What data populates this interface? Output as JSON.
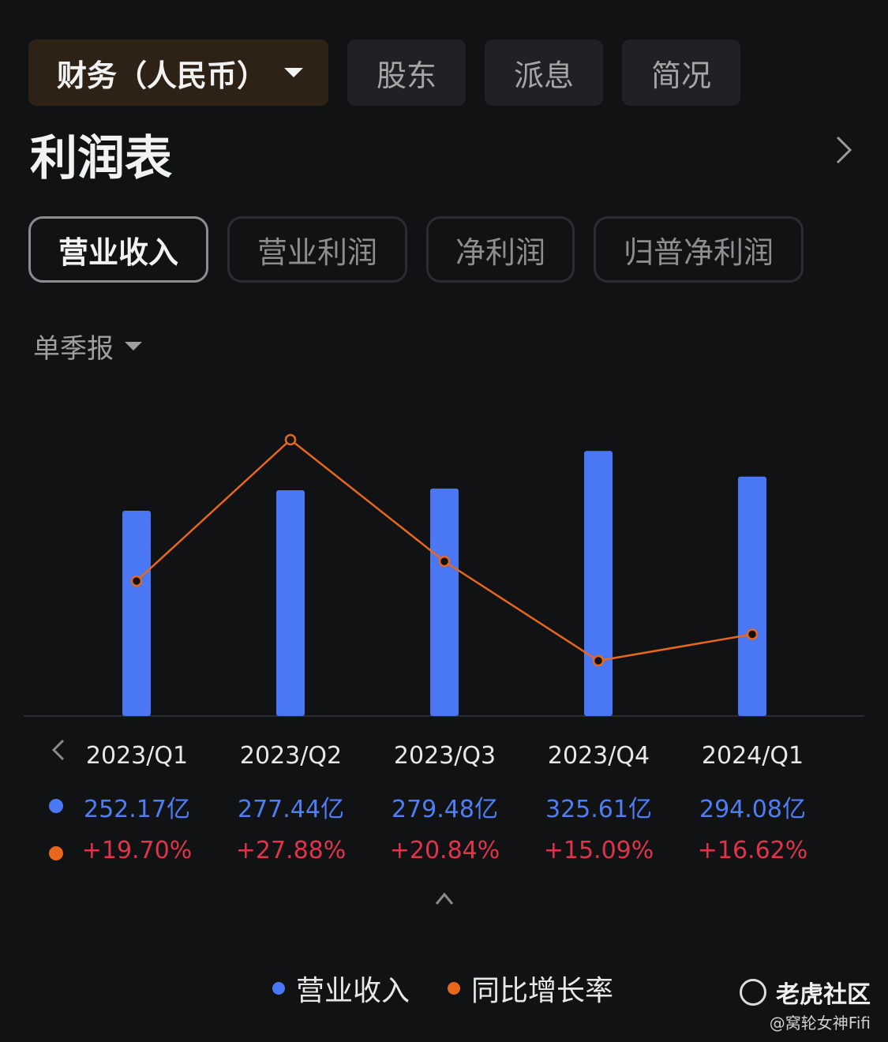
{
  "top_tabs": [
    {
      "label": "财务（人民币）",
      "active": true
    },
    {
      "label": "股东"
    },
    {
      "label": "派息"
    },
    {
      "label": "简况"
    }
  ],
  "page_title": "利润表",
  "metric_tabs": [
    {
      "label": "营业收入",
      "active": true
    },
    {
      "label": "营业利润"
    },
    {
      "label": "净利润"
    },
    {
      "label": "归普净利润"
    }
  ],
  "period_selector": "单季报",
  "colors": {
    "revenue": "#4a77f3",
    "growth": "#e7671d",
    "growth_text": "#e0344a"
  },
  "chart_data": {
    "type": "bar",
    "categories": [
      "2023/Q1",
      "2023/Q2",
      "2023/Q3",
      "2023/Q4",
      "2024/Q1"
    ],
    "series": [
      {
        "name": "营业收入",
        "type": "bar",
        "values": [
          252.17,
          277.44,
          279.48,
          325.61,
          294.08
        ],
        "labels": [
          "252.17亿",
          "277.44亿",
          "279.48亿",
          "325.61亿",
          "294.08亿"
        ]
      },
      {
        "name": "同比增长率",
        "type": "line",
        "values": [
          19.7,
          27.88,
          20.84,
          15.09,
          16.62
        ],
        "labels": [
          "+19.70%",
          "+27.88%",
          "+20.84%",
          "+15.09%",
          "+16.62%"
        ]
      }
    ]
  },
  "legend": [
    "营业收入",
    "同比增长率"
  ],
  "watermark": {
    "brand": "老虎社区",
    "user": "@窝轮女神Fifi"
  }
}
